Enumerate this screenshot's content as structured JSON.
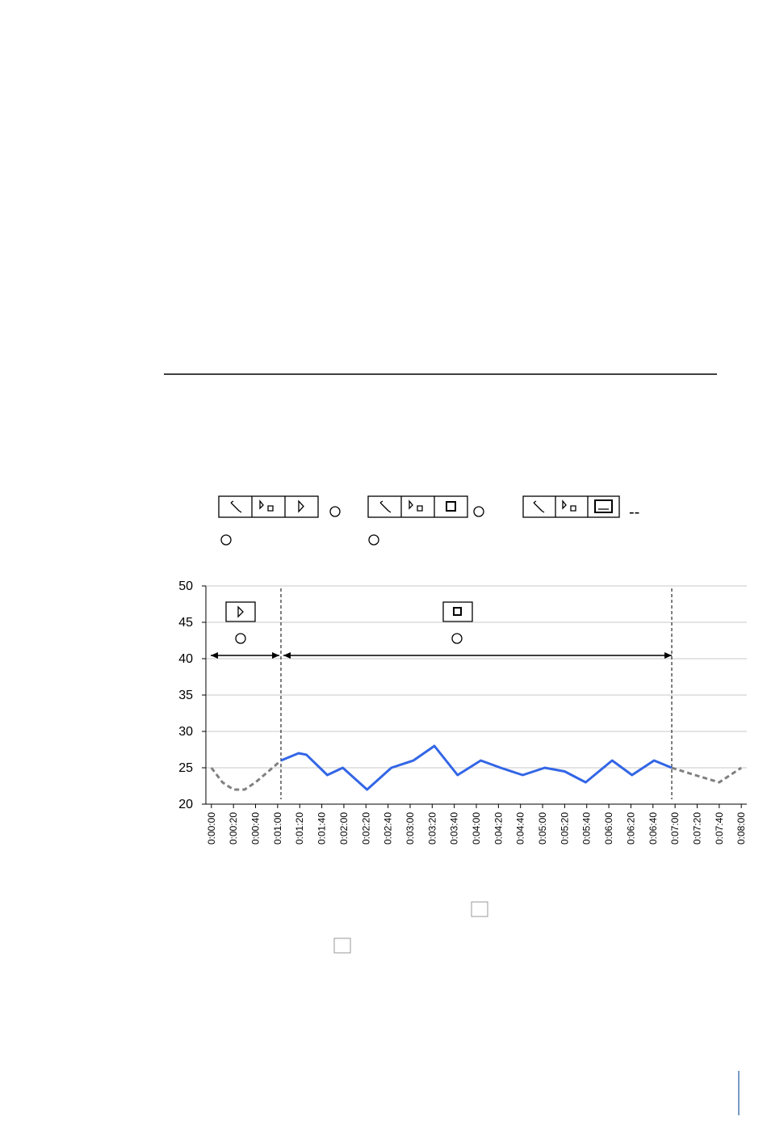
{
  "toolbar": {
    "separator": "--"
  },
  "chart_data": {
    "type": "line",
    "xlim": [
      -5,
      485
    ],
    "ylim": [
      20,
      50
    ],
    "yticks": [
      20,
      25,
      30,
      35,
      40,
      45,
      50
    ],
    "xticks": [
      {
        "value": 0,
        "label": "0:00:00"
      },
      {
        "value": 20,
        "label": "0:00:20"
      },
      {
        "value": 40,
        "label": "0:00:40"
      },
      {
        "value": 60,
        "label": "0:01:00"
      },
      {
        "value": 80,
        "label": "0:01:20"
      },
      {
        "value": 100,
        "label": "0:01:40"
      },
      {
        "value": 120,
        "label": "0:02:00"
      },
      {
        "value": 140,
        "label": "0:02:20"
      },
      {
        "value": 160,
        "label": "0:02:40"
      },
      {
        "value": 180,
        "label": "0:03:00"
      },
      {
        "value": 200,
        "label": "0:03:20"
      },
      {
        "value": 220,
        "label": "0:03:40"
      },
      {
        "value": 240,
        "label": "0:04:00"
      },
      {
        "value": 260,
        "label": "0:04:20"
      },
      {
        "value": 280,
        "label": "0:04:40"
      },
      {
        "value": 300,
        "label": "0:05:00"
      },
      {
        "value": 320,
        "label": "0:05:20"
      },
      {
        "value": 340,
        "label": "0:05:40"
      },
      {
        "value": 360,
        "label": "0:06:00"
      },
      {
        "value": 380,
        "label": "0:06:20"
      },
      {
        "value": 400,
        "label": "0:06:40"
      },
      {
        "value": 420,
        "label": "0:07:00"
      },
      {
        "value": 440,
        "label": "0:07:20"
      },
      {
        "value": 460,
        "label": "0:07:40"
      },
      {
        "value": 480,
        "label": "0:08:00"
      }
    ],
    "grid": true,
    "phase_boundaries": [
      63,
      417
    ],
    "series": [
      {
        "color": "#808080",
        "dashed": true,
        "x": [
          0,
          10,
          20,
          30,
          40,
          50,
          63
        ],
        "values": [
          25,
          23,
          22,
          22,
          23,
          24.3,
          26
        ]
      },
      {
        "color": "#3366e6",
        "dashed": false,
        "x": [
          63,
          79,
          86,
          105,
          119,
          141,
          163,
          183,
          202,
          223,
          244,
          262,
          282,
          302,
          320,
          339,
          363,
          381,
          401,
          417
        ],
        "values": [
          26,
          27,
          26.8,
          24,
          25,
          22,
          25,
          26,
          28,
          24,
          26,
          25,
          24,
          25,
          24.5,
          23,
          26,
          24,
          26,
          25
        ]
      },
      {
        "color": "#808080",
        "dashed": true,
        "x": [
          417,
          438,
          460,
          480
        ],
        "values": [
          25,
          24,
          23,
          25
        ]
      }
    ]
  }
}
